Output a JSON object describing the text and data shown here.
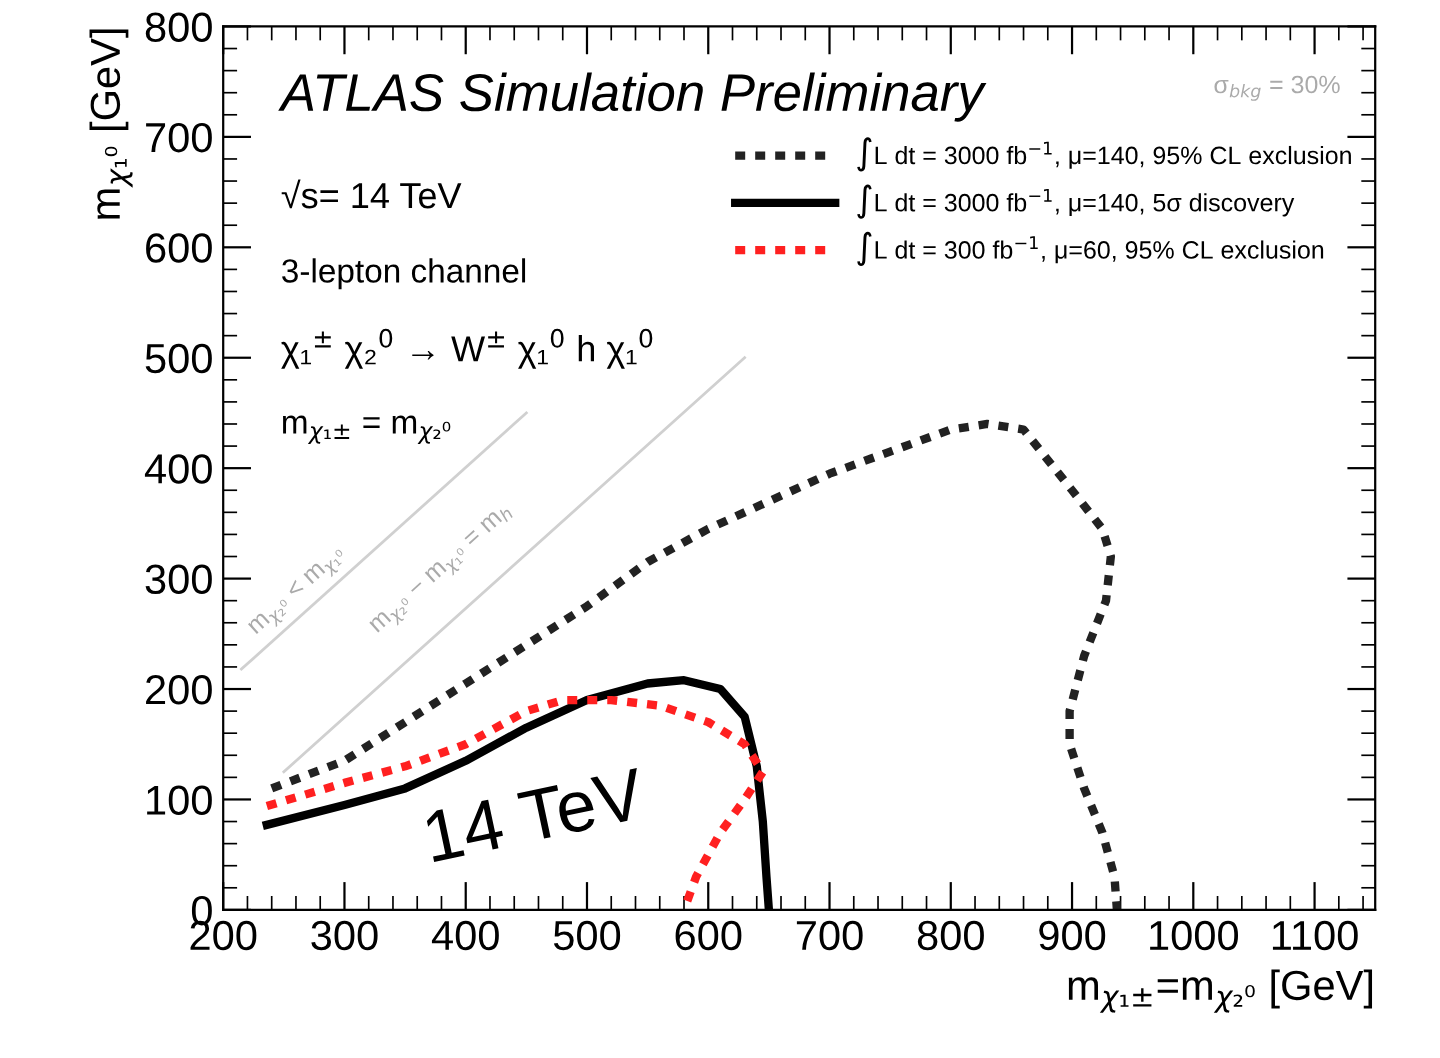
{
  "chart_data": {
    "type": "line",
    "title": "ATLAS Simulation Preliminary",
    "xlabel": "m$_{χ₁±}$=m$_{χ₂⁰}$ [GeV]",
    "ylabel": "m$_{χ₁⁰}$ [GeV]",
    "xlim": [
      200,
      1150
    ],
    "ylim": [
      0,
      800
    ],
    "xticks": [
      200,
      300,
      400,
      500,
      600,
      700,
      800,
      900,
      1000,
      1100
    ],
    "yticks": [
      0,
      100,
      200,
      300,
      400,
      500,
      600,
      700,
      800
    ],
    "legend": "top right",
    "grid": false,
    "series": [
      {
        "name": "∫L dt = 3000 fb$^{−1}$, μ=140, 95% CL exclusion",
        "color": "#222222",
        "line_style": "dotted",
        "x": [
          240,
          300,
          350,
          400,
          450,
          500,
          550,
          600,
          650,
          700,
          750,
          800,
          830,
          860,
          900,
          925,
          932,
          928,
          910,
          898,
          898,
          910,
          925,
          935,
          937
        ],
        "values": [
          110,
          135,
          170,
          205,
          240,
          275,
          315,
          345,
          370,
          395,
          415,
          435,
          440,
          435,
          380,
          345,
          320,
          280,
          230,
          180,
          150,
          110,
          70,
          30,
          0
        ]
      },
      {
        "name": "∫L dt = 3000 fb$^{−1}$, μ=140, 5σ discovery",
        "color": "#000000",
        "line_style": "solid",
        "x": [
          236,
          300,
          350,
          400,
          450,
          500,
          550,
          580,
          610,
          630,
          640,
          645,
          648,
          650
        ],
        "values": [
          77,
          95,
          110,
          135,
          165,
          190,
          205,
          208,
          200,
          175,
          130,
          80,
          30,
          0
        ]
      },
      {
        "name": "∫L dt = 300 fb$^{−1}$, μ=60, 95% CL exclusion",
        "color": "#ff2020",
        "line_style": "dotted",
        "x": [
          236,
          300,
          350,
          400,
          450,
          480,
          520,
          560,
          600,
          630,
          645,
          630,
          610,
          590,
          580
        ],
        "values": [
          94,
          115,
          130,
          150,
          180,
          190,
          190,
          185,
          170,
          150,
          125,
          100,
          70,
          30,
          0
        ]
      },
      {
        "color": "#d0d0d0",
        "line_style": "solid",
        "x": [
          215,
          450
        ],
        "values": [
          218,
          450
        ]
      },
      {
        "color": "#d0d0d0",
        "line_style": "solid",
        "x": [
          250,
          630
        ],
        "values": [
          125,
          500
        ]
      }
    ],
    "annotations": [
      "σ$_{bkg}$ = 30%",
      "√s= 14 TeV",
      "3-lepton channel",
      "χ₁$^{±}$ χ₂$^{0}$ → W$^{±}$ χ₁$^{0}$ h χ₁$^{0}$",
      "m$_{χ₁±}$ = m$_{χ₂⁰}$",
      "m$_{χ₂⁰}$ < m$_{χ₁⁰}$",
      "m$_{χ₂⁰}$ − m$_{χ₁⁰}$ = m$_{h}$",
      "14 TeV"
    ]
  }
}
